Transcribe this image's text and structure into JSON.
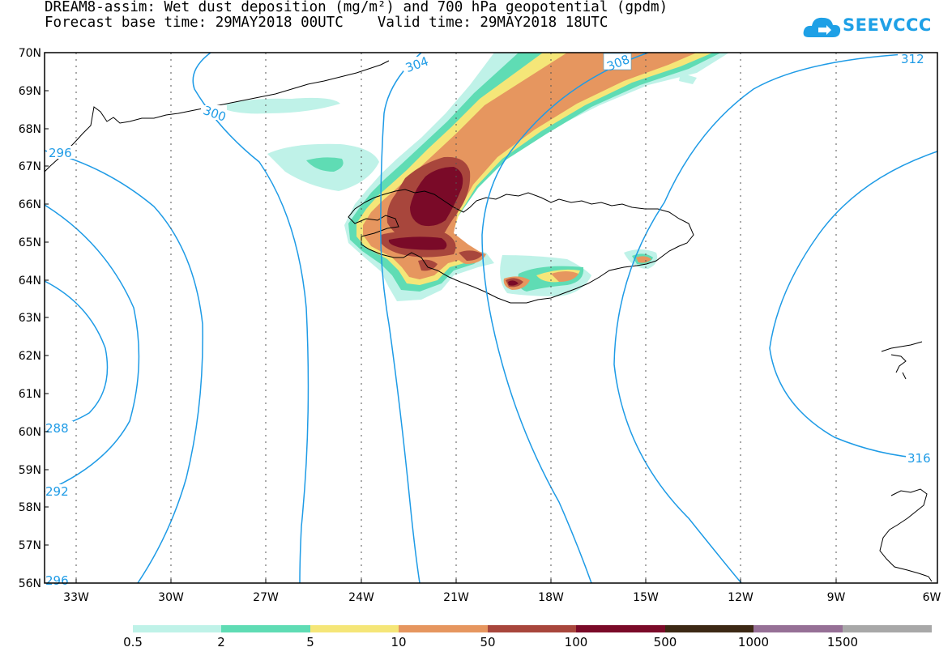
{
  "header": {
    "title_line1": "DREAM8-assim: Wet dust deposition (mg/m²) and 700 hPa geopotential (gpdm)",
    "title_line2": "Forecast base time: 29MAY2018 00UTC    Valid time: 29MAY2018 18UTC"
  },
  "logo": {
    "text": "SEEVCCC",
    "icon": "cloud-icon",
    "color": "#1ea0e6"
  },
  "map": {
    "lat_labels": [
      "70N",
      "69N",
      "68N",
      "67N",
      "66N",
      "65N",
      "64N",
      "63N",
      "62N",
      "61N",
      "60N",
      "59N",
      "58N",
      "57N",
      "56N"
    ],
    "lon_labels": [
      "33W",
      "30W",
      "27W",
      "24W",
      "21W",
      "18W",
      "15W",
      "12W",
      "9W",
      "6W"
    ],
    "contour_labels": [
      "300",
      "304",
      "308",
      "312",
      "296",
      "288",
      "292",
      "296",
      "316"
    ],
    "contour_color": "#1e9be6"
  },
  "colorbar": {
    "colors": [
      "#bff2e8",
      "#5fdcb4",
      "#f5e678",
      "#e6965f",
      "#a8463c",
      "#7a0a28",
      "#3c2814",
      "#967096",
      "#a8a8a8"
    ],
    "labels": [
      "0.5",
      "2",
      "5",
      "10",
      "50",
      "100",
      "500",
      "1000",
      "1500"
    ]
  }
}
